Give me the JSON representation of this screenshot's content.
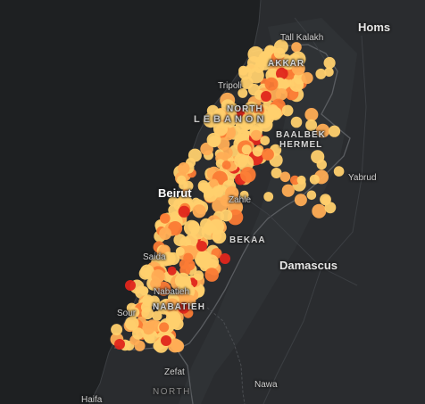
{
  "map": {
    "theme": "dark",
    "colors": {
      "land": "#2a2c2f",
      "land_alt": "#313437",
      "sea": "#1e2022",
      "border": "#5a5d61",
      "road": "#3c3f43"
    },
    "labels": {
      "homs": "Homs",
      "tall_kalakh": "Tall Kalakh",
      "akkar": "AKKAR",
      "tripoli": "Tripoli",
      "north": "NORTH",
      "lebanon": "LEBANON",
      "baalbek": "BAALBEK",
      "hermel": "HERMEL",
      "yabrud": "Yabrud",
      "beirut": "Beirut",
      "zahle": "Zahle",
      "bekaa": "BEKAA",
      "damascus": "Damascus",
      "saida": "Saida",
      "nabatieh_city": "Nabatieh",
      "nabatieh_region": "NABATIEH",
      "sour": "Sour",
      "zefat": "Zefat",
      "north_district": "NORTH",
      "nawa": "Nawa",
      "haifa": "Haifa"
    }
  },
  "points_legend": {
    "colors": {
      "light": "#ffd06e",
      "medium": "#ffad55",
      "orange": "#fb7b35",
      "red": "#e0261c"
    }
  }
}
